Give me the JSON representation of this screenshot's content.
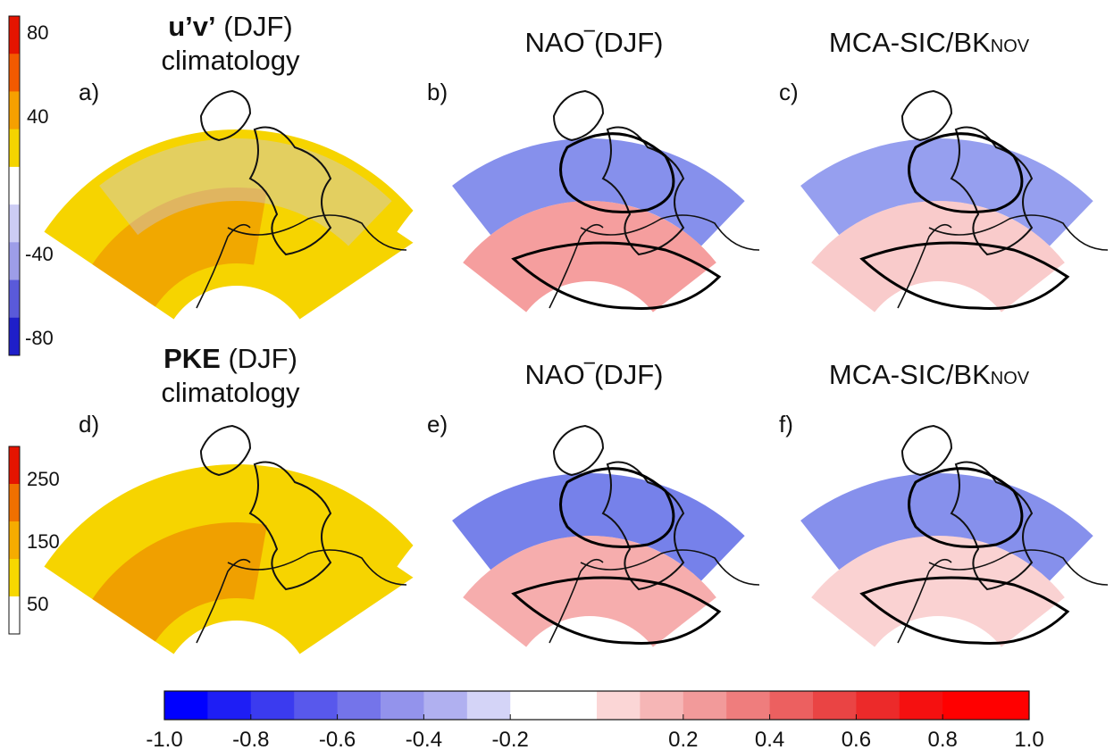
{
  "rows": [
    {
      "title_bold": "u’v’",
      "title_rest": " (DJF)",
      "title_line2": "climatology",
      "colorbar_ticks": [
        "80",
        "40",
        "-40",
        "-80"
      ],
      "colorbar_colors": [
        "#e51400",
        "#f25a00",
        "#f6a000",
        "#f4d400",
        "#ffffff",
        "#ccccf4",
        "#9d9de8",
        "#5a5ad9",
        "#1f1fc9"
      ]
    },
    {
      "title_bold": "PKE",
      "title_rest": " (DJF)",
      "title_line2": "climatology",
      "colorbar_ticks": [
        "250",
        "150",
        "50"
      ],
      "colorbar_colors": [
        "#e51400",
        "#f07000",
        "#f6ac00",
        "#f7d800",
        "#ffffff"
      ]
    }
  ],
  "panels": [
    {
      "label": "a)",
      "title": "",
      "palette": "yellow",
      "lobes": [
        {
          "type": "orange",
          "w": 0.85
        },
        {
          "type": "blue",
          "w": 0.4
        }
      ]
    },
    {
      "label": "b)",
      "title": "NAO‾(DJF)",
      "palette": "div",
      "lobes": [
        {
          "type": "blue",
          "w": 0.75
        },
        {
          "type": "red",
          "w": 0.65
        }
      ]
    },
    {
      "label": "c)",
      "title": "MCA-SIC/BK",
      "title_sub": "NOV",
      "palette": "div",
      "lobes": [
        {
          "type": "blue",
          "w": 0.65
        },
        {
          "type": "red",
          "w": 0.35
        }
      ]
    },
    {
      "label": "d)",
      "title": "",
      "palette": "yellow",
      "lobes": [
        {
          "type": "orange",
          "w": 1.0
        }
      ]
    },
    {
      "label": "e)",
      "title": "NAO‾(DJF)",
      "palette": "div",
      "lobes": [
        {
          "type": "blue",
          "w": 0.85
        },
        {
          "type": "red",
          "w": 0.55
        }
      ]
    },
    {
      "label": "f)",
      "title": "MCA-SIC/BK",
      "title_sub": "NOV",
      "palette": "div",
      "lobes": [
        {
          "type": "blue",
          "w": 0.75
        },
        {
          "type": "red",
          "w": 0.3
        }
      ]
    }
  ],
  "bottom_colorbar": {
    "ticks": [
      "-1.0",
      "-0.8",
      "-0.6",
      "-0.4",
      "-0.2",
      "0.2",
      "0.4",
      "0.6",
      "0.8",
      "1.0"
    ],
    "tick_values": [
      -1.0,
      -0.8,
      -0.6,
      -0.4,
      -0.2,
      0.2,
      0.4,
      0.6,
      0.8,
      1.0
    ],
    "min": -1.0,
    "max": 1.0,
    "colors": [
      "#0000ff",
      "#1e1ef5",
      "#3b3bef",
      "#5858ec",
      "#7474ea",
      "#9393ec",
      "#b0b0f0",
      "#d4d4f7",
      "#ffffff",
      "#ffffff",
      "#fbd6d6",
      "#f6b6b6",
      "#f29a9a",
      "#ef7d7d",
      "#ec6060",
      "#ea4444",
      "#ec2a2a",
      "#f51010",
      "#ff0000",
      "#ff0000"
    ]
  }
}
